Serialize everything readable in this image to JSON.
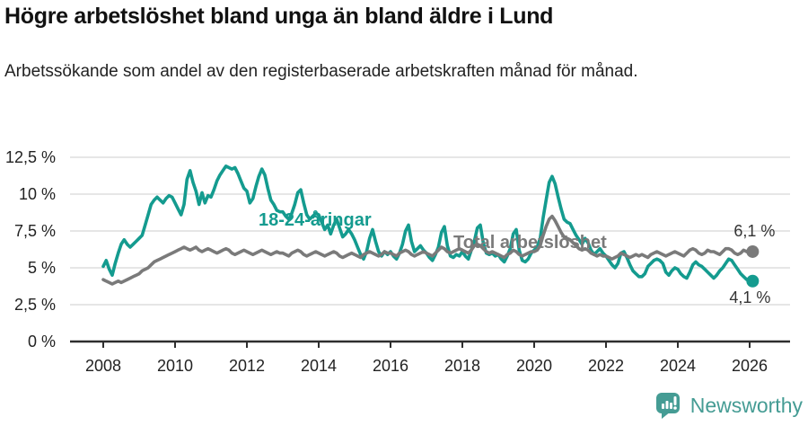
{
  "header": {
    "title": "Högre arbetslöshet bland unga än bland äldre i Lund",
    "subtitle": "Arbetssökande som andel av den registerbaserade arbetskraften månad för månad."
  },
  "colors": {
    "young": "#149b8f",
    "total": "#7a7a7a",
    "axis": "#2e2e2e",
    "grid": "#d8d8d8",
    "tick_text": "#222222",
    "end_label_text": "#333333",
    "logo": "#459c94"
  },
  "chart_data": {
    "type": "line",
    "title": "Högre arbetslöshet bland unga än bland äldre i Lund",
    "subtitle": "Arbetssökande som andel av den registerbaserade arbetskraften månad för månad.",
    "xlabel": "",
    "ylabel": "",
    "grid": "horizontal",
    "legend_position": "inline-labels",
    "x_unit": "year",
    "x_start": 2008.0,
    "x_months_per_point": 1,
    "xlim": [
      2007.1,
      2027.1
    ],
    "ylim": [
      0,
      12.5
    ],
    "y_ticks": {
      "values": [
        0,
        2.5,
        5,
        7.5,
        10,
        12.5
      ],
      "labels": [
        "0 %",
        "2,5 %",
        "5 %",
        "7,5 %",
        "10 %",
        "12,5 %"
      ]
    },
    "x_ticks": {
      "values": [
        2008,
        2010,
        2012,
        2014,
        2016,
        2018,
        2020,
        2022,
        2024,
        2026
      ],
      "labels": [
        "2008",
        "2010",
        "2012",
        "2014",
        "2016",
        "2018",
        "2020",
        "2022",
        "2024",
        "2026"
      ]
    },
    "series": [
      {
        "id": "young",
        "name": "18-24-åringar",
        "color": "#149b8f",
        "end_label": "4,1 %",
        "last_value": 4.1,
        "label_pos": {
          "x": 288,
          "y": 251,
          "anchor": "start"
        },
        "end_label_offset": {
          "dx": -3,
          "dy": 24
        },
        "values": [
          5.1,
          5.5,
          4.9,
          4.5,
          5.3,
          6.0,
          6.6,
          6.9,
          6.6,
          6.4,
          6.6,
          6.8,
          7.0,
          7.2,
          7.9,
          8.6,
          9.3,
          9.6,
          9.8,
          9.6,
          9.4,
          9.7,
          9.9,
          9.8,
          9.4,
          9.0,
          8.6,
          9.3,
          11.0,
          11.6,
          10.8,
          10.2,
          9.3,
          10.1,
          9.4,
          9.9,
          9.8,
          10.3,
          10.9,
          11.3,
          11.6,
          11.9,
          11.8,
          11.7,
          11.8,
          11.4,
          10.9,
          10.4,
          10.2,
          9.4,
          9.7,
          10.5,
          11.2,
          11.7,
          11.3,
          10.4,
          9.6,
          9.3,
          8.9,
          8.8,
          8.8,
          8.5,
          8.3,
          8.7,
          9.3,
          10.1,
          10.3,
          9.4,
          8.6,
          8.3,
          8.5,
          8.7,
          8.6,
          8.1,
          7.6,
          7.9,
          7.3,
          7.9,
          8.3,
          7.7,
          7.1,
          7.3,
          7.6,
          7.3,
          6.9,
          6.4,
          5.9,
          5.6,
          6.1,
          7.0,
          7.6,
          6.8,
          6.1,
          5.8,
          6.1,
          5.9,
          6.1,
          5.8,
          5.6,
          6.0,
          6.6,
          7.5,
          7.9,
          6.8,
          6.1,
          6.3,
          6.5,
          6.2,
          6.0,
          5.7,
          5.5,
          5.9,
          6.4,
          7.4,
          7.8,
          6.5,
          5.8,
          5.7,
          5.9,
          5.8,
          6.1,
          5.8,
          5.6,
          6.2,
          6.8,
          7.7,
          7.9,
          6.7,
          6.0,
          5.9,
          6.0,
          5.8,
          5.9,
          5.6,
          5.4,
          5.8,
          6.3,
          7.3,
          7.6,
          6.2,
          5.5,
          5.4,
          5.6,
          6.0,
          6.2,
          6.4,
          7.0,
          8.4,
          9.6,
          10.8,
          11.2,
          10.7,
          9.8,
          9.0,
          8.3,
          8.1,
          8.0,
          7.6,
          7.2,
          6.9,
          6.6,
          7.0,
          6.7,
          6.2,
          5.9,
          6.1,
          6.3,
          6.0,
          5.8,
          5.5,
          5.2,
          5.0,
          5.3,
          6.0,
          6.1,
          5.7,
          5.2,
          4.8,
          4.6,
          4.4,
          4.4,
          4.6,
          5.1,
          5.3,
          5.5,
          5.6,
          5.5,
          5.3,
          4.7,
          4.5,
          4.8,
          5.0,
          4.9,
          4.6,
          4.4,
          4.3,
          4.7,
          5.2,
          5.4,
          5.2,
          5.1,
          4.9,
          4.7,
          4.5,
          4.3,
          4.5,
          4.8,
          5.0,
          5.3,
          5.6,
          5.5,
          5.2,
          4.9,
          4.6,
          4.4,
          4.2,
          4.2,
          4.1
        ]
      },
      {
        "id": "total",
        "name": "Total arbetslöshet",
        "color": "#7a7a7a",
        "end_label": "6,1 %",
        "last_value": 6.1,
        "label_pos": {
          "x": 505,
          "y": 276,
          "anchor": "start"
        },
        "end_label_offset": {
          "dx": 2,
          "dy": -17
        },
        "values": [
          4.2,
          4.1,
          4.0,
          3.9,
          4.0,
          4.1,
          4.0,
          4.1,
          4.2,
          4.3,
          4.4,
          4.5,
          4.6,
          4.8,
          4.9,
          5.0,
          5.2,
          5.4,
          5.5,
          5.6,
          5.7,
          5.8,
          5.9,
          6.0,
          6.1,
          6.2,
          6.3,
          6.4,
          6.3,
          6.2,
          6.3,
          6.4,
          6.2,
          6.1,
          6.2,
          6.3,
          6.2,
          6.1,
          6.0,
          6.1,
          6.2,
          6.3,
          6.2,
          6.0,
          5.9,
          6.0,
          6.1,
          6.2,
          6.1,
          6.0,
          5.9,
          6.0,
          6.1,
          6.2,
          6.1,
          6.0,
          5.9,
          6.0,
          6.1,
          6.0,
          6.0,
          5.9,
          5.8,
          6.0,
          6.1,
          6.2,
          6.1,
          5.9,
          5.8,
          5.9,
          6.0,
          6.1,
          6.0,
          5.9,
          5.8,
          5.9,
          6.0,
          6.1,
          6.0,
          5.8,
          5.7,
          5.8,
          5.9,
          6.0,
          5.9,
          5.8,
          5.7,
          5.9,
          6.0,
          6.1,
          6.0,
          5.9,
          5.8,
          5.9,
          6.1,
          6.0,
          6.0,
          5.9,
          5.8,
          6.0,
          6.1,
          6.2,
          6.1,
          5.9,
          5.8,
          5.9,
          6.0,
          6.1,
          6.0,
          5.9,
          5.8,
          6.0,
          6.2,
          6.4,
          6.3,
          6.1,
          6.0,
          6.1,
          6.2,
          6.3,
          6.2,
          6.1,
          6.0,
          6.2,
          6.5,
          6.6,
          6.5,
          6.3,
          6.1,
          6.0,
          6.1,
          6.0,
          5.9,
          5.8,
          5.7,
          5.9,
          6.0,
          6.2,
          6.1,
          5.9,
          5.8,
          5.9,
          6.0,
          6.1,
          6.1,
          6.2,
          6.5,
          7.2,
          7.8,
          8.3,
          8.5,
          8.2,
          7.8,
          7.4,
          7.1,
          7.0,
          6.9,
          6.7,
          6.5,
          6.3,
          6.2,
          6.3,
          6.2,
          6.0,
          5.9,
          5.8,
          5.9,
          5.8,
          5.8,
          5.7,
          5.6,
          5.7,
          5.8,
          6.0,
          5.9,
          5.8,
          5.7,
          5.8,
          5.9,
          5.8,
          5.9,
          5.8,
          5.7,
          5.9,
          6.0,
          6.1,
          6.0,
          5.9,
          5.8,
          5.9,
          6.0,
          6.1,
          6.0,
          5.9,
          5.8,
          6.0,
          6.2,
          6.3,
          6.2,
          6.0,
          5.9,
          6.0,
          6.2,
          6.1,
          6.1,
          6.0,
          5.9,
          6.1,
          6.3,
          6.3,
          6.2,
          6.0,
          5.9,
          6.0,
          6.2,
          6.1,
          6.0,
          6.1
        ]
      }
    ]
  },
  "footer": {
    "brand": "Newsworthy"
  }
}
